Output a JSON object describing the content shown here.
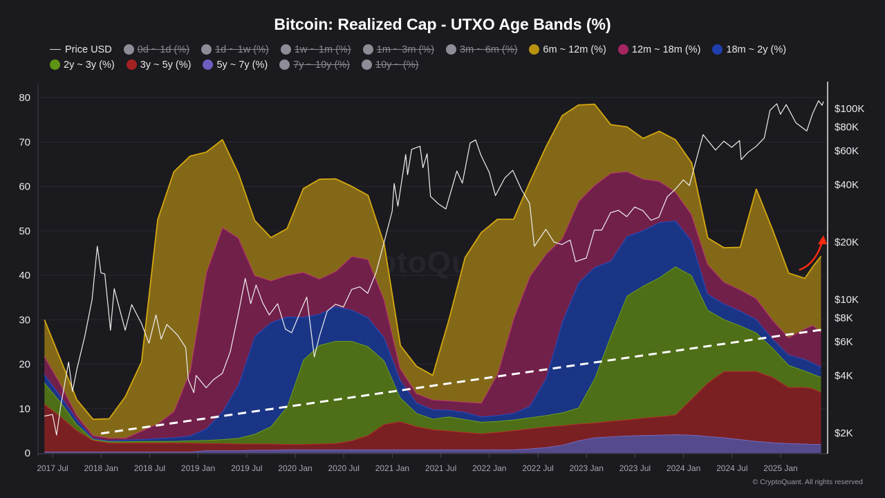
{
  "chart_data": {
    "type": "area",
    "stacked": true,
    "title": "Bitcoin: Realized Cap - UTXO Age Bands (%)",
    "watermark": "CryptoQuant",
    "copyright": "© CryptoQuant. All rights reserved",
    "x_tick_labels": [
      "2017 Jul",
      "2018 Jan",
      "2018 Jul",
      "2019 Jan",
      "2019 Jul",
      "2020 Jan",
      "2020 Jul",
      "2021 Jan",
      "2021 Jul",
      "2022 Jan",
      "2022 Jul",
      "2023 Jan",
      "2023 Jul",
      "2024 Jan",
      "2024 Jul",
      "2025 Jan"
    ],
    "x_tick_dates": [
      "2017-07-01",
      "2018-01-01",
      "2018-07-01",
      "2019-01-01",
      "2019-07-01",
      "2020-01-01",
      "2020-07-01",
      "2021-01-01",
      "2021-07-01",
      "2022-01-01",
      "2022-07-01",
      "2023-01-01",
      "2023-07-01",
      "2024-01-01",
      "2024-07-01",
      "2025-01-01"
    ],
    "y_left": {
      "range": [
        0,
        80
      ],
      "ticks": [
        0,
        10,
        20,
        30,
        40,
        50,
        60,
        70,
        80
      ],
      "tick_labels": [
        "0",
        "10",
        "20",
        "30",
        "40",
        "50",
        "60",
        "70",
        "80"
      ],
      "grid": true
    },
    "y_right": {
      "scale": "log",
      "ticks": [
        100000,
        80000,
        60000,
        40000,
        20000,
        10000,
        8000,
        6000,
        4000,
        2000
      ],
      "tick_labels": [
        "$100K",
        "$80K",
        "$60K",
        "$40K",
        "$20K",
        "$10K",
        "$8K",
        "$6K",
        "$4K",
        "$2K"
      ]
    },
    "legend": [
      {
        "name": "Price USD",
        "kind": "line",
        "color": "#e6e6e6",
        "hidden": false
      },
      {
        "name": "0d ~ 1d (%)",
        "color": "#8e8c96",
        "hidden": true
      },
      {
        "name": "1d ~ 1w (%)",
        "color": "#8e8c96",
        "hidden": true
      },
      {
        "name": "1w ~ 1m (%)",
        "color": "#8e8c96",
        "hidden": true
      },
      {
        "name": "1m ~ 3m (%)",
        "color": "#8e8c96",
        "hidden": true
      },
      {
        "name": "3m ~ 6m (%)",
        "color": "#8e8c96",
        "hidden": true
      },
      {
        "name": "6m ~ 12m (%)",
        "color": "#b8920f",
        "hidden": false
      },
      {
        "name": "12m ~ 18m (%)",
        "color": "#a52660",
        "hidden": false
      },
      {
        "name": "18m ~ 2y (%)",
        "color": "#1f3fb0",
        "hidden": false
      },
      {
        "name": "2y ~ 3y (%)",
        "color": "#5e9416",
        "hidden": false
      },
      {
        "name": "3y ~ 5y (%)",
        "color": "#a42222",
        "hidden": false
      },
      {
        "name": "5y ~ 7y (%)",
        "color": "#6d5fbf",
        "hidden": false
      },
      {
        "name": "7y ~ 10y (%)",
        "color": "#8e8c96",
        "hidden": true
      },
      {
        "name": "10y ~ (%)",
        "color": "#8e8c96",
        "hidden": true
      }
    ],
    "dates": [
      "2017-06",
      "2017-08",
      "2017-10",
      "2017-12",
      "2018-02",
      "2018-04",
      "2018-06",
      "2018-08",
      "2018-10",
      "2018-12",
      "2019-02",
      "2019-04",
      "2019-06",
      "2019-08",
      "2019-10",
      "2019-12",
      "2020-02",
      "2020-04",
      "2020-06",
      "2020-08",
      "2020-10",
      "2020-12",
      "2021-02",
      "2021-04",
      "2021-06",
      "2021-08",
      "2021-10",
      "2021-12",
      "2022-02",
      "2022-04",
      "2022-06",
      "2022-08",
      "2022-10",
      "2022-12",
      "2023-02",
      "2023-04",
      "2023-06",
      "2023-08",
      "2023-10",
      "2023-12",
      "2024-02",
      "2024-04",
      "2024-06",
      "2024-08",
      "2024-10",
      "2024-12",
      "2025-02",
      "2025-04",
      "2025-05",
      "2025-06"
    ],
    "series": [
      {
        "name": "5y ~ 7y (%)",
        "fill": "#554b8c",
        "line": "#7a6cc5",
        "values": [
          0.3,
          0.3,
          0.3,
          0.3,
          0.3,
          0.3,
          0.3,
          0.3,
          0.3,
          0.3,
          0.6,
          0.6,
          0.6,
          0.7,
          0.7,
          0.8,
          0.8,
          0.8,
          0.8,
          0.8,
          0.8,
          0.8,
          0.8,
          0.8,
          0.8,
          0.8,
          0.8,
          0.8,
          0.8,
          0.8,
          1.0,
          1.3,
          1.8,
          2.8,
          3.5,
          3.7,
          3.9,
          4.0,
          4.1,
          4.2,
          4.1,
          3.8,
          3.5,
          3.1,
          2.7,
          2.4,
          2.2,
          2.1,
          2.0,
          2.0
        ]
      },
      {
        "name": "3y ~ 5y (%)",
        "fill": "#7a2023",
        "line": "#c02828",
        "values": [
          10.7,
          7.9,
          4.8,
          2.6,
          2.0,
          2.0,
          2.0,
          2.0,
          2.0,
          2.0,
          1.6,
          1.6,
          1.5,
          1.4,
          1.4,
          1.2,
          1.2,
          1.3,
          1.4,
          2.0,
          3.2,
          5.7,
          6.3,
          5.2,
          4.5,
          4.2,
          3.9,
          3.6,
          3.9,
          4.3,
          4.5,
          4.6,
          4.4,
          3.8,
          3.3,
          3.5,
          3.6,
          3.9,
          4.1,
          4.4,
          8.1,
          12.0,
          14.9,
          15.3,
          15.7,
          14.7,
          12.6,
          12.7,
          12.5,
          11.7
        ]
      },
      {
        "name": "2y ~ 3y (%)",
        "fill": "#4e6e17",
        "line": "#72a81e",
        "values": [
          4.8,
          3.3,
          1.4,
          0.2,
          0.3,
          0.3,
          0.4,
          0.4,
          0.4,
          0.5,
          0.7,
          0.9,
          1.3,
          2.2,
          3.9,
          8.5,
          19.0,
          22.2,
          23.0,
          22.4,
          20.0,
          14.3,
          5.4,
          3.0,
          2.4,
          3.2,
          2.9,
          2.6,
          2.5,
          2.4,
          2.5,
          2.6,
          2.9,
          3.6,
          10.0,
          19.2,
          27.9,
          29.7,
          31.3,
          33.4,
          27.8,
          16.4,
          11.7,
          10.3,
          8.7,
          6.6,
          5.0,
          3.7,
          3.3,
          3.4
        ]
      },
      {
        "name": "18m ~ 2y (%)",
        "fill": "#1a3585",
        "line": "#2450d0",
        "values": [
          1.9,
          1.3,
          1.0,
          0.2,
          0.2,
          0.4,
          0.4,
          0.6,
          0.8,
          1.1,
          2.6,
          6.2,
          12.1,
          22.0,
          23.4,
          20.2,
          9.6,
          7.0,
          7.8,
          7.0,
          6.5,
          5.2,
          3.9,
          2.3,
          2.1,
          1.5,
          1.6,
          1.2,
          1.3,
          1.5,
          2.6,
          8.3,
          20.4,
          28.1,
          25.0,
          16.8,
          13.4,
          12.5,
          12.4,
          10.3,
          7.8,
          3.6,
          3.5,
          3.3,
          3.0,
          2.0,
          2.3,
          2.6,
          2.5,
          2.3
        ]
      },
      {
        "name": "12m ~ 18m (%)",
        "fill": "#71204a",
        "line": "#c8337a",
        "values": [
          4.1,
          2.7,
          1.0,
          0.7,
          0.6,
          0.4,
          1.9,
          3.3,
          5.9,
          14.6,
          35.1,
          41.5,
          32.9,
          13.7,
          9.4,
          9.3,
          10.1,
          7.9,
          7.9,
          12.1,
          13.1,
          8.5,
          2.6,
          2.1,
          2.2,
          2.1,
          2.3,
          3.1,
          9.3,
          21.3,
          29.2,
          28.0,
          18.8,
          18.3,
          18.5,
          19.8,
          14.6,
          11.6,
          9.3,
          6.5,
          5.9,
          6.7,
          4.9,
          4.8,
          4.7,
          4.3,
          3.9,
          6.9,
          8.5,
          7.8
        ]
      },
      {
        "name": "6m ~ 12m (%)",
        "fill": "#836818",
        "line": "#d4a810",
        "values": [
          8.2,
          5.5,
          3.5,
          3.6,
          4.3,
          9.3,
          15.5,
          45.9,
          53.9,
          48.3,
          27.1,
          19.7,
          14.4,
          12.3,
          9.7,
          10.5,
          18.8,
          22.4,
          20.8,
          15.7,
          14.4,
          12.5,
          5.2,
          6.1,
          5.5,
          18.2,
          32.5,
          38.3,
          34.8,
          22.3,
          21.2,
          24.1,
          27.6,
          21.7,
          18.2,
          10.9,
          10.0,
          9.1,
          11.2,
          11.7,
          11.6,
          5.9,
          7.7,
          9.5,
          24.6,
          20.3,
          14.5,
          11.3,
          13.2,
          17.1
        ]
      }
    ],
    "price_usd": {
      "name": "Price USD",
      "axis": "right",
      "color": "#f0f0f0",
      "points": [
        [
          "2017-06-01",
          2450
        ],
        [
          "2017-07-01",
          2500
        ],
        [
          "2017-07-16",
          1950
        ],
        [
          "2017-08-01",
          2750
        ],
        [
          "2017-08-31",
          4700
        ],
        [
          "2017-09-15",
          3300
        ],
        [
          "2017-10-01",
          4300
        ],
        [
          "2017-10-31",
          6400
        ],
        [
          "2017-11-28",
          10000
        ],
        [
          "2017-12-17",
          19000
        ],
        [
          "2017-12-31",
          13800
        ],
        [
          "2018-01-15",
          13600
        ],
        [
          "2018-02-06",
          6900
        ],
        [
          "2018-02-20",
          11400
        ],
        [
          "2018-03-31",
          6900
        ],
        [
          "2018-04-25",
          9400
        ],
        [
          "2018-05-31",
          7500
        ],
        [
          "2018-06-29",
          5900
        ],
        [
          "2018-07-25",
          8300
        ],
        [
          "2018-08-14",
          6200
        ],
        [
          "2018-09-05",
          7400
        ],
        [
          "2018-10-15",
          6500
        ],
        [
          "2018-11-15",
          5600
        ],
        [
          "2018-11-25",
          3800
        ],
        [
          "2018-12-15",
          3250
        ],
        [
          "2018-12-24",
          4000
        ],
        [
          "2019-01-31",
          3450
        ],
        [
          "2019-02-28",
          3800
        ],
        [
          "2019-03-31",
          4100
        ],
        [
          "2019-04-30",
          5300
        ],
        [
          "2019-05-31",
          8500
        ],
        [
          "2019-06-26",
          12900
        ],
        [
          "2019-07-16",
          9500
        ],
        [
          "2019-08-06",
          11900
        ],
        [
          "2019-08-31",
          9600
        ],
        [
          "2019-09-25",
          8300
        ],
        [
          "2019-10-26",
          9500
        ],
        [
          "2019-11-25",
          7000
        ],
        [
          "2019-12-18",
          6700
        ],
        [
          "2020-01-31",
          9350
        ],
        [
          "2020-02-14",
          10300
        ],
        [
          "2020-03-12",
          5000
        ],
        [
          "2020-03-31",
          6400
        ],
        [
          "2020-04-30",
          8700
        ],
        [
          "2020-05-31",
          9450
        ],
        [
          "2020-06-30",
          9130
        ],
        [
          "2020-07-31",
          11300
        ],
        [
          "2020-08-31",
          11650
        ],
        [
          "2020-09-30",
          10780
        ],
        [
          "2020-10-31",
          13800
        ],
        [
          "2020-11-30",
          19700
        ],
        [
          "2020-12-31",
          29000
        ],
        [
          "2021-01-08",
          40500
        ],
        [
          "2021-01-22",
          30800
        ],
        [
          "2021-02-21",
          57500
        ],
        [
          "2021-02-28",
          45000
        ],
        [
          "2021-03-13",
          61200
        ],
        [
          "2021-04-14",
          63500
        ],
        [
          "2021-04-25",
          49000
        ],
        [
          "2021-05-10",
          58000
        ],
        [
          "2021-05-23",
          34700
        ],
        [
          "2021-06-22",
          31700
        ],
        [
          "2021-07-20",
          29800
        ],
        [
          "2021-08-31",
          47100
        ],
        [
          "2021-09-21",
          40700
        ],
        [
          "2021-10-20",
          66000
        ],
        [
          "2021-11-10",
          68500
        ],
        [
          "2021-11-30",
          57000
        ],
        [
          "2021-12-31",
          46300
        ],
        [
          "2022-01-24",
          35000
        ],
        [
          "2022-02-28",
          43200
        ],
        [
          "2022-03-28",
          47500
        ],
        [
          "2022-04-30",
          37700
        ],
        [
          "2022-05-31",
          31800
        ],
        [
          "2022-06-18",
          19000
        ],
        [
          "2022-07-31",
          23300
        ],
        [
          "2022-08-31",
          20000
        ],
        [
          "2022-09-30",
          19400
        ],
        [
          "2022-10-31",
          20500
        ],
        [
          "2022-11-21",
          15800
        ],
        [
          "2022-12-31",
          16500
        ],
        [
          "2023-01-31",
          23100
        ],
        [
          "2023-02-28",
          23100
        ],
        [
          "2023-03-31",
          28500
        ],
        [
          "2023-04-30",
          29300
        ],
        [
          "2023-05-31",
          27200
        ],
        [
          "2023-06-30",
          30500
        ],
        [
          "2023-07-31",
          29200
        ],
        [
          "2023-08-31",
          26000
        ],
        [
          "2023-09-30",
          27000
        ],
        [
          "2023-10-31",
          34500
        ],
        [
          "2023-11-30",
          37700
        ],
        [
          "2023-12-31",
          42300
        ],
        [
          "2024-01-23",
          39500
        ],
        [
          "2024-02-29",
          61200
        ],
        [
          "2024-03-14",
          73000
        ],
        [
          "2024-04-30",
          60600
        ],
        [
          "2024-05-31",
          67500
        ],
        [
          "2024-06-30",
          62700
        ],
        [
          "2024-07-29",
          68000
        ],
        [
          "2024-08-05",
          54000
        ],
        [
          "2024-08-31",
          59000
        ],
        [
          "2024-09-30",
          63300
        ],
        [
          "2024-10-31",
          70200
        ],
        [
          "2024-11-22",
          98000
        ],
        [
          "2024-12-17",
          106000
        ],
        [
          "2024-12-31",
          93400
        ],
        [
          "2025-01-22",
          105000
        ],
        [
          "2025-02-28",
          84300
        ],
        [
          "2025-04-08",
          76300
        ],
        [
          "2025-04-30",
          94200
        ],
        [
          "2025-05-22",
          110000
        ],
        [
          "2025-06-05",
          104000
        ],
        [
          "2025-06-10",
          109000
        ]
      ]
    },
    "annotations": [
      {
        "type": "dashed-trend-line",
        "axis": "left",
        "color": "#ffffff",
        "from": [
          "2018-01-01",
          4.4
        ],
        "to": [
          "2025-06-10",
          27.8
        ]
      },
      {
        "type": "arrow",
        "axis": "left",
        "color": "#ff2a10",
        "from": [
          "2025-03-10",
          41.2
        ],
        "to": [
          "2025-06-10",
          49.0
        ]
      }
    ]
  }
}
